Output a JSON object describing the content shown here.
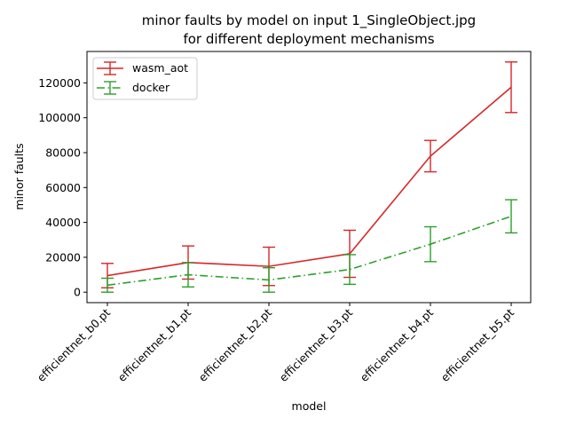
{
  "chart_data": {
    "type": "line",
    "title": "minor faults by model on input 1_SingleObject.jpg",
    "subtitle": "for different deployment mechanisms",
    "xlabel": "model",
    "ylabel": "minor faults",
    "categories": [
      "efficientnet_b0.pt",
      "efficientnet_b1.pt",
      "efficientnet_b2.pt",
      "efficientnet_b3.pt",
      "efficientnet_b4.pt",
      "efficientnet_b5.pt"
    ],
    "ylim": [
      -6000,
      138000
    ],
    "yticks": [
      0,
      20000,
      40000,
      60000,
      80000,
      100000,
      120000
    ],
    "ytick_labels": [
      "0",
      "20000",
      "40000",
      "60000",
      "80000",
      "100000",
      "120000"
    ],
    "grid": false,
    "legend_position": "top-left",
    "series": [
      {
        "name": "wasm_aot",
        "color": "#d62728",
        "linestyle": "solid",
        "values": [
          9500,
          17000,
          14800,
          22000,
          78000,
          117500
        ],
        "errors": [
          7000,
          9500,
          11000,
          13500,
          9000,
          14500
        ]
      },
      {
        "name": "docker",
        "color": "#2ca02c",
        "linestyle": "dashdot",
        "values": [
          4000,
          10000,
          7000,
          13000,
          27500,
          43500
        ],
        "errors": [
          4000,
          7000,
          7000,
          8500,
          10000,
          9500
        ]
      }
    ]
  }
}
